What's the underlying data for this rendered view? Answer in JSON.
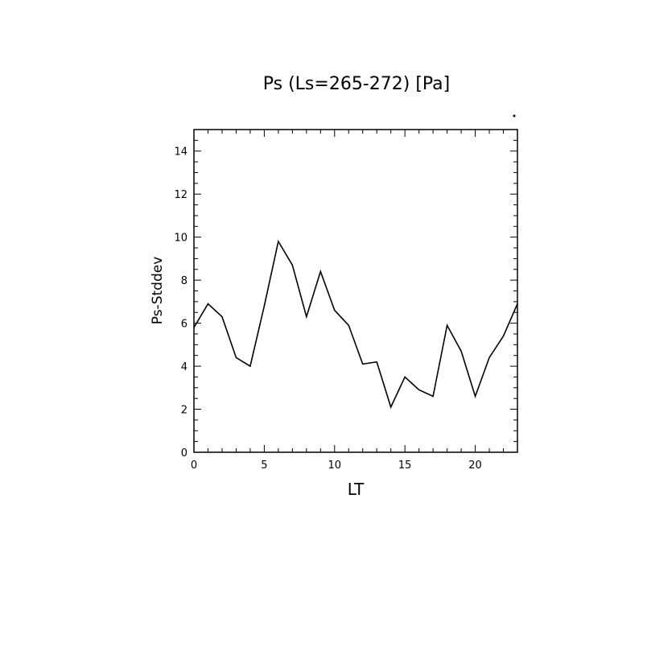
{
  "chart_data": {
    "type": "line",
    "title": "Ps (Ls=265-272) [Pa]",
    "xlabel": "LT",
    "ylabel": "Ps-Stddev",
    "xlim": [
      0,
      23
    ],
    "ylim": [
      0,
      15
    ],
    "x_ticks": [
      0,
      5,
      10,
      15,
      20
    ],
    "y_ticks": [
      0,
      2,
      4,
      6,
      8,
      10,
      12,
      14
    ],
    "grid": false,
    "series": [
      {
        "x": [
          0,
          1,
          2,
          3,
          4,
          5,
          6,
          7,
          8,
          9,
          10,
          11,
          12,
          13,
          14,
          15,
          16,
          17,
          18,
          19,
          20,
          21,
          22,
          23
        ],
        "y": [
          5.8,
          6.9,
          6.3,
          4.4,
          4.0,
          6.8,
          9.8,
          8.7,
          6.3,
          8.4,
          6.6,
          5.9,
          4.1,
          4.2,
          2.1,
          3.5,
          2.9,
          2.6,
          5.9,
          4.7,
          2.6,
          4.4,
          5.4,
          6.9
        ]
      }
    ]
  }
}
